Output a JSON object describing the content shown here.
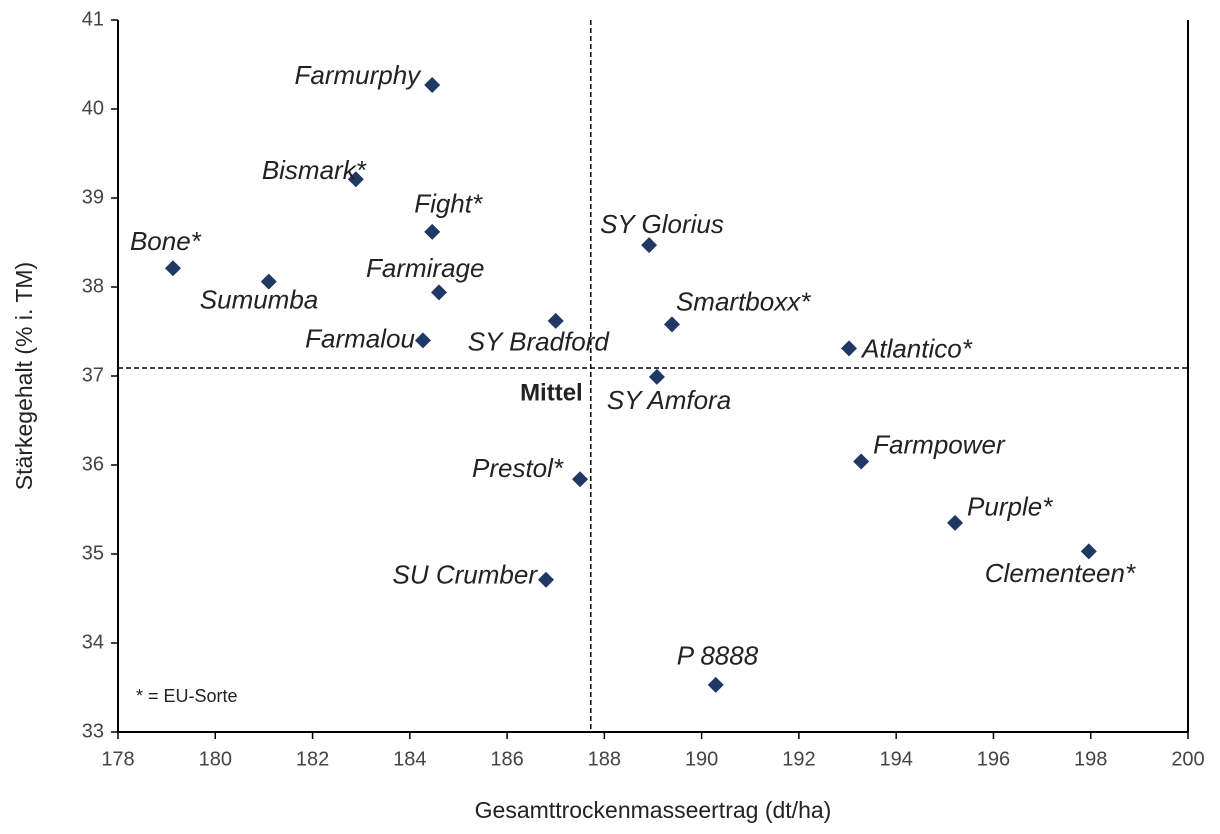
{
  "chart_data": {
    "type": "scatter",
    "x_label": "Gesamttrockenmasseertrag (dt/ha)",
    "y_label": "Stärkegehalt  (% i. TM)",
    "point_labels": [
      "Farmurphy",
      "Bismark*",
      "Fight*",
      "Bone*",
      "Sumumba",
      "Farmirage",
      "Farmalou",
      "SY Bradford",
      "SY Glorius",
      "Smartboxx*",
      "Atlantico*",
      "SY Amfora",
      "Farmpower",
      "Purple*",
      "Clementeen*",
      "Prestol*",
      "SU Crumber",
      "P 8888"
    ],
    "x": [
      184.46,
      182.89,
      184.46,
      179.13,
      181.1,
      184.6,
      184.27,
      187.0,
      188.92,
      189.39,
      193.03,
      189.08,
      193.28,
      195.21,
      197.96,
      187.5,
      186.8,
      190.29
    ],
    "values": [
      40.27,
      39.21,
      38.62,
      38.21,
      38.06,
      37.94,
      37.4,
      37.62,
      38.47,
      37.58,
      37.31,
      36.99,
      36.04,
      35.35,
      35.03,
      35.84,
      34.71,
      33.53
    ],
    "color": "#1f3864",
    "mean_x": 187.72,
    "mean_y": 37.09,
    "mean_label": "Mittel",
    "note": "* = EU-Sorte",
    "xlim": [
      178,
      200
    ],
    "xticks": [
      178,
      180,
      182,
      184,
      186,
      188,
      190,
      192,
      194,
      196,
      198,
      200
    ],
    "ylim": [
      33,
      41
    ],
    "yticks": [
      33,
      34,
      35,
      36,
      37,
      38,
      39,
      40,
      41
    ]
  }
}
